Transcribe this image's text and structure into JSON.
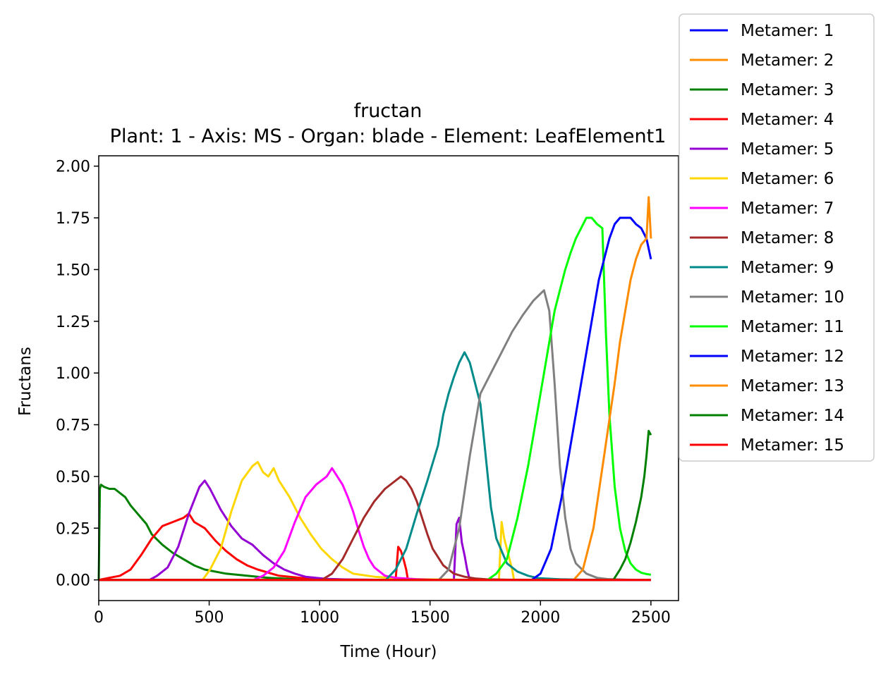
{
  "chart_data": {
    "type": "line",
    "title": "fructan",
    "subtitle": "Plant: 1 - Axis: MS - Organ: blade - Element: LeafElement1",
    "xlabel": "Time (Hour)",
    "ylabel": "Fructans",
    "xlim": [
      0,
      2625
    ],
    "ylim": [
      -0.1,
      2.05
    ],
    "xticks": [
      0,
      500,
      1000,
      1500,
      2000,
      2500
    ],
    "yticks": [
      0.0,
      0.25,
      0.5,
      0.75,
      1.0,
      1.25,
      1.5,
      1.75,
      2.0
    ],
    "xtick_labels": [
      "0",
      "500",
      "1000",
      "1500",
      "2000",
      "2500"
    ],
    "ytick_labels": [
      "0.00",
      "0.25",
      "0.50",
      "0.75",
      "1.00",
      "1.25",
      "1.50",
      "1.75",
      "2.00"
    ],
    "grid": false,
    "legend_position": "outside top-right",
    "series": [
      {
        "name": "Metamer: 1",
        "color": "#0000ff",
        "x": [
          0,
          2500
        ],
        "y": [
          0,
          0
        ]
      },
      {
        "name": "Metamer: 2",
        "color": "#ff8c00",
        "x": [
          0,
          2500
        ],
        "y": [
          0,
          0
        ]
      },
      {
        "name": "Metamer: 3",
        "color": "#008000",
        "x": [
          0,
          5,
          10,
          24,
          48,
          72,
          96,
          120,
          144,
          168,
          192,
          216,
          240,
          288,
          336,
          384,
          432,
          480,
          576,
          672,
          768,
          864,
          960,
          1056,
          1130,
          1150,
          2500
        ],
        "y": [
          0,
          0.44,
          0.46,
          0.45,
          0.44,
          0.44,
          0.42,
          0.4,
          0.36,
          0.33,
          0.3,
          0.27,
          0.22,
          0.17,
          0.13,
          0.1,
          0.07,
          0.05,
          0.03,
          0.02,
          0.01,
          0.005,
          0.002,
          0.001,
          0,
          0,
          0
        ]
      },
      {
        "name": "Metamer: 4",
        "color": "#ff0000",
        "x": [
          0,
          48,
          96,
          144,
          192,
          240,
          288,
          336,
          384,
          408,
          432,
          480,
          528,
          576,
          624,
          672,
          720,
          816,
          912,
          1008,
          1104,
          1200,
          1344,
          1356,
          1368,
          1380,
          1392,
          1400,
          2500
        ],
        "y": [
          0,
          0.01,
          0.02,
          0.05,
          0.12,
          0.2,
          0.26,
          0.28,
          0.3,
          0.32,
          0.28,
          0.25,
          0.19,
          0.14,
          0.1,
          0.07,
          0.05,
          0.02,
          0.01,
          0.005,
          0.002,
          0.001,
          0,
          0.16,
          0.14,
          0.1,
          0.05,
          0,
          0
        ]
      },
      {
        "name": "Metamer: 5",
        "color": "#9400d3",
        "x": [
          0,
          230,
          264,
          312,
          360,
          408,
          456,
          480,
          504,
          552,
          600,
          648,
          696,
          744,
          792,
          840,
          888,
          936,
          1032,
          1128,
          1224,
          1320,
          1416,
          1512,
          1608,
          1620,
          1632,
          1644,
          1656,
          1668,
          1680,
          2500
        ],
        "y": [
          0,
          0.0,
          0.02,
          0.06,
          0.16,
          0.32,
          0.45,
          0.48,
          0.44,
          0.34,
          0.26,
          0.2,
          0.17,
          0.12,
          0.08,
          0.05,
          0.03,
          0.015,
          0.005,
          0.002,
          0.001,
          0,
          0,
          0,
          0,
          0.27,
          0.3,
          0.18,
          0.12,
          0.05,
          0,
          0
        ]
      },
      {
        "name": "Metamer: 6",
        "color": "#ffd700",
        "x": [
          0,
          470,
          504,
          552,
          600,
          648,
          696,
          720,
          744,
          768,
          792,
          816,
          864,
          912,
          960,
          1008,
          1056,
          1104,
          1152,
          1248,
          1344,
          1440,
          1536,
          1632,
          1728,
          1812,
          1824,
          1836,
          1848,
          1860,
          1872,
          1880,
          2500
        ],
        "y": [
          0,
          0,
          0.05,
          0.15,
          0.33,
          0.48,
          0.55,
          0.57,
          0.52,
          0.5,
          0.54,
          0.48,
          0.4,
          0.3,
          0.22,
          0.15,
          0.1,
          0.06,
          0.03,
          0.015,
          0.008,
          0.004,
          0.002,
          0.001,
          0,
          0,
          0.28,
          0.2,
          0.15,
          0.1,
          0.05,
          0,
          0
        ]
      },
      {
        "name": "Metamer: 7",
        "color": "#ff00ff",
        "x": [
          0,
          700,
          744,
          792,
          840,
          888,
          936,
          984,
          1032,
          1056,
          1080,
          1104,
          1128,
          1152,
          1176,
          1200,
          1224,
          1248,
          1296,
          1344,
          1440,
          1536,
          2500
        ],
        "y": [
          0,
          0,
          0.02,
          0.06,
          0.14,
          0.28,
          0.4,
          0.46,
          0.5,
          0.54,
          0.5,
          0.46,
          0.4,
          0.33,
          0.24,
          0.16,
          0.1,
          0.06,
          0.02,
          0.01,
          0.003,
          0,
          0
        ]
      },
      {
        "name": "Metamer: 8",
        "color": "#a52a2a",
        "x": [
          0,
          1010,
          1056,
          1104,
          1152,
          1200,
          1248,
          1296,
          1344,
          1368,
          1392,
          1416,
          1440,
          1464,
          1488,
          1512,
          1560,
          1608,
          1656,
          1704,
          1752,
          1848,
          2500
        ],
        "y": [
          0,
          0,
          0.03,
          0.1,
          0.2,
          0.3,
          0.38,
          0.44,
          0.48,
          0.5,
          0.48,
          0.44,
          0.38,
          0.3,
          0.22,
          0.15,
          0.07,
          0.03,
          0.015,
          0.007,
          0.003,
          0.001,
          0
        ]
      },
      {
        "name": "Metamer: 9",
        "color": "#008b8b",
        "x": [
          0,
          1300,
          1344,
          1392,
          1440,
          1488,
          1536,
          1560,
          1584,
          1608,
          1632,
          1656,
          1680,
          1704,
          1728,
          1752,
          1776,
          1800,
          1848,
          1896,
          1944,
          1992,
          2088,
          2184,
          2500
        ],
        "y": [
          0,
          0,
          0.05,
          0.15,
          0.32,
          0.48,
          0.65,
          0.8,
          0.9,
          0.98,
          1.05,
          1.1,
          1.05,
          0.95,
          0.85,
          0.6,
          0.35,
          0.2,
          0.08,
          0.04,
          0.02,
          0.008,
          0.003,
          0.001,
          0
        ]
      },
      {
        "name": "Metamer: 10",
        "color": "#808080",
        "x": [
          0,
          1540,
          1584,
          1632,
          1680,
          1704,
          1728,
          1776,
          1824,
          1872,
          1920,
          1968,
          2016,
          2040,
          2064,
          2088,
          2112,
          2136,
          2160,
          2208,
          2256,
          2304,
          2400,
          2500
        ],
        "y": [
          0,
          0,
          0.05,
          0.25,
          0.6,
          0.75,
          0.9,
          1.0,
          1.1,
          1.2,
          1.28,
          1.35,
          1.4,
          1.3,
          0.95,
          0.55,
          0.3,
          0.15,
          0.08,
          0.03,
          0.01,
          0.004,
          0.001,
          0
        ]
      },
      {
        "name": "Metamer: 11",
        "color": "#00ff00",
        "x": [
          0,
          1760,
          1800,
          1848,
          1896,
          1944,
          1968,
          1992,
          2016,
          2040,
          2064,
          2088,
          2112,
          2136,
          2160,
          2184,
          2208,
          2232,
          2256,
          2280,
          2296,
          2312,
          2336,
          2360,
          2384,
          2408,
          2432,
          2456,
          2480,
          2500
        ],
        "y": [
          0,
          0,
          0.03,
          0.1,
          0.3,
          0.55,
          0.7,
          0.85,
          1.0,
          1.15,
          1.3,
          1.4,
          1.5,
          1.58,
          1.65,
          1.7,
          1.75,
          1.75,
          1.72,
          1.7,
          1.2,
          0.8,
          0.45,
          0.25,
          0.14,
          0.08,
          0.05,
          0.035,
          0.028,
          0.025
        ]
      },
      {
        "name": "Metamer: 12",
        "color": "#0000ff",
        "x": [
          0,
          1960,
          2000,
          2048,
          2096,
          2144,
          2192,
          2216,
          2240,
          2264,
          2288,
          2312,
          2336,
          2360,
          2384,
          2408,
          2432,
          2456,
          2480,
          2500
        ],
        "y": [
          0,
          0,
          0.03,
          0.15,
          0.4,
          0.7,
          1.0,
          1.15,
          1.3,
          1.45,
          1.55,
          1.65,
          1.72,
          1.75,
          1.75,
          1.75,
          1.72,
          1.7,
          1.65,
          1.55
        ]
      },
      {
        "name": "Metamer: 13",
        "color": "#ff8c00",
        "x": [
          0,
          2150,
          2192,
          2240,
          2288,
          2336,
          2360,
          2384,
          2408,
          2432,
          2456,
          2480,
          2490,
          2500
        ],
        "y": [
          0,
          0,
          0.05,
          0.25,
          0.6,
          0.95,
          1.15,
          1.3,
          1.45,
          1.55,
          1.62,
          1.65,
          1.85,
          1.65
        ]
      },
      {
        "name": "Metamer: 14",
        "color": "#008000",
        "x": [
          0,
          2330,
          2360,
          2384,
          2408,
          2432,
          2456,
          2470,
          2480,
          2490,
          2500
        ],
        "y": [
          0,
          0,
          0.05,
          0.1,
          0.18,
          0.28,
          0.4,
          0.5,
          0.6,
          0.72,
          0.7
        ]
      },
      {
        "name": "Metamer: 15",
        "color": "#ff0000",
        "x": [
          0,
          2500
        ],
        "y": [
          0,
          0
        ]
      }
    ]
  }
}
